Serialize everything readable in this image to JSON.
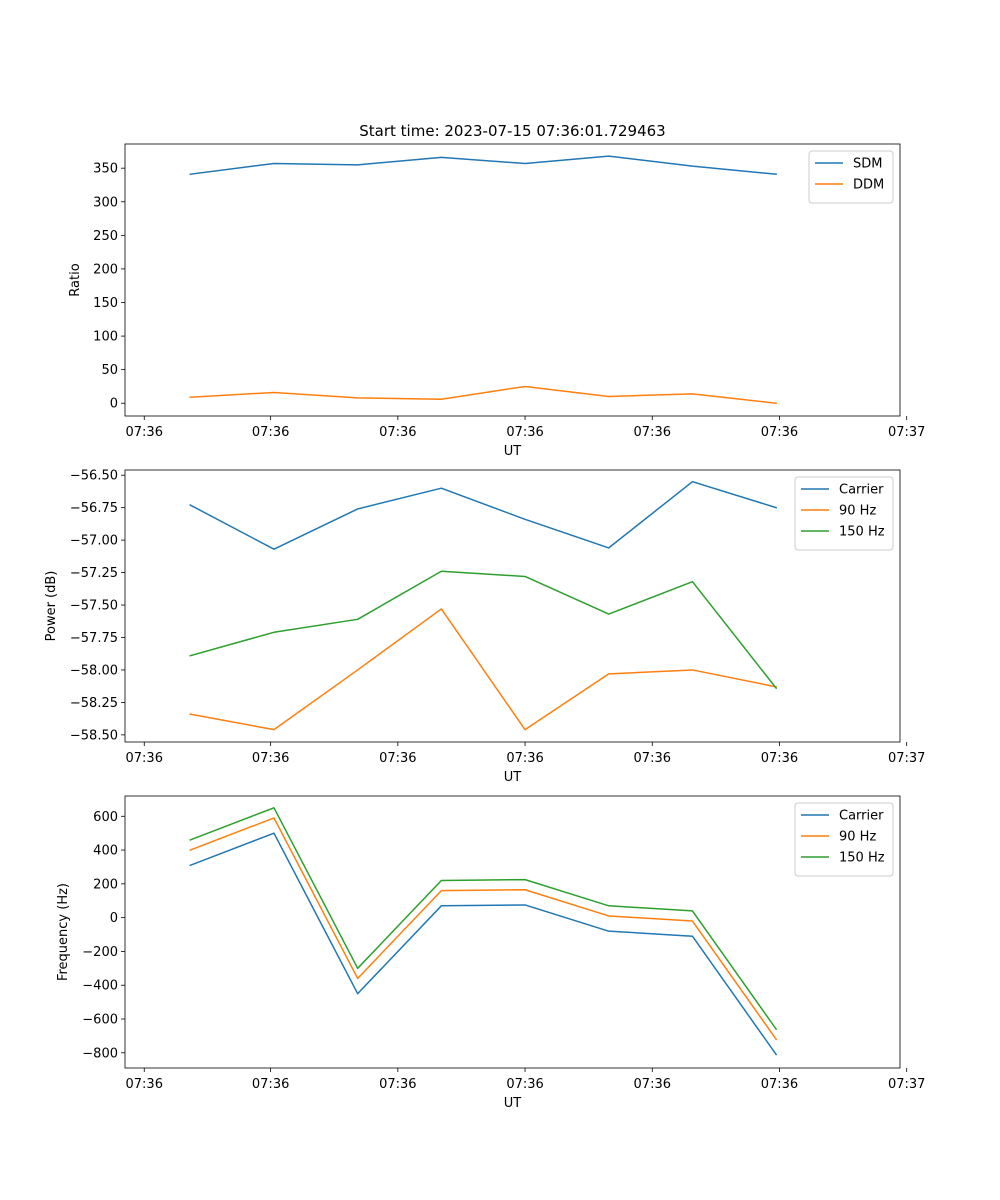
{
  "figure_title": "Start time: 2023-07-15 07:36:01.729463",
  "chart_data": [
    {
      "type": "line",
      "title": "Start time: 2023-07-15 07:36:01.729463",
      "xlabel": "UT",
      "ylabel": "Ratio",
      "x": [
        1,
        2,
        3,
        4,
        5,
        6,
        7,
        8
      ],
      "xlim": [
        0.22,
        9.48
      ],
      "x_ticks": [
        0.45,
        1.96,
        3.48,
        5.0,
        6.52,
        8.04,
        9.56
      ],
      "x_tick_labels": [
        "07:36",
        "07:36",
        "07:36",
        "07:36",
        "07:36",
        "07:36",
        "07:37"
      ],
      "ylim": [
        -19,
        386
      ],
      "y_ticks": [
        0,
        50,
        100,
        150,
        200,
        250,
        300,
        350
      ],
      "y_tick_labels": [
        "0",
        "50",
        "100",
        "150",
        "200",
        "250",
        "300",
        "350"
      ],
      "legend_position": "top-right",
      "series": [
        {
          "name": "SDM",
          "color": "#1f77b4",
          "values": [
            341,
            357,
            355,
            366,
            357,
            368,
            353,
            341
          ]
        },
        {
          "name": "DDM",
          "color": "#ff7f0e",
          "values": [
            9,
            16,
            8,
            6,
            25,
            10,
            14,
            0
          ]
        }
      ]
    },
    {
      "type": "line",
      "title": "",
      "xlabel": "UT",
      "ylabel": "Power (dB)",
      "x": [
        1,
        2,
        3,
        4,
        5,
        6,
        7,
        8
      ],
      "xlim": [
        0.22,
        9.48
      ],
      "x_ticks": [
        0.45,
        1.96,
        3.48,
        5.0,
        6.52,
        8.04,
        9.56
      ],
      "x_tick_labels": [
        "07:36",
        "07:36",
        "07:36",
        "07:36",
        "07:36",
        "07:36",
        "07:37"
      ],
      "ylim": [
        -58.555,
        -56.46
      ],
      "y_ticks": [
        -58.5,
        -58.25,
        -58.0,
        -57.75,
        -57.5,
        -57.25,
        -57.0,
        -56.75,
        -56.5
      ],
      "y_tick_labels": [
        "−58.50",
        "−58.25",
        "−58.00",
        "−57.75",
        "−57.50",
        "−57.25",
        "−57.00",
        "−56.75",
        "−56.50"
      ],
      "legend_position": "top-right",
      "series": [
        {
          "name": "Carrier",
          "color": "#1f77b4",
          "values": [
            -56.73,
            -57.07,
            -56.76,
            -56.6,
            -56.84,
            -57.06,
            -56.55,
            -56.75
          ]
        },
        {
          "name": "90 Hz",
          "color": "#ff7f0e",
          "values": [
            -58.34,
            -58.46,
            -58.0,
            -57.53,
            -58.46,
            -58.03,
            -58.0,
            -58.13
          ]
        },
        {
          "name": "150 Hz",
          "color": "#2ca02c",
          "values": [
            -57.89,
            -57.71,
            -57.61,
            -57.24,
            -57.28,
            -57.57,
            -57.32,
            -58.14
          ]
        }
      ]
    },
    {
      "type": "line",
      "title": "",
      "xlabel": "UT",
      "ylabel": "Frequency (Hz)",
      "x": [
        1,
        2,
        3,
        4,
        5,
        6,
        7,
        8
      ],
      "xlim": [
        0.22,
        9.48
      ],
      "x_ticks": [
        0.45,
        1.96,
        3.48,
        5.0,
        6.52,
        8.04,
        9.56
      ],
      "x_tick_labels": [
        "07:36",
        "07:36",
        "07:36",
        "07:36",
        "07:36",
        "07:36",
        "07:37"
      ],
      "ylim": [
        -890,
        720
      ],
      "y_ticks": [
        -800,
        -600,
        -400,
        -200,
        0,
        200,
        400,
        600
      ],
      "y_tick_labels": [
        "−800",
        "−600",
        "−400",
        "−200",
        "0",
        "200",
        "400",
        "600"
      ],
      "legend_position": "top-right",
      "series": [
        {
          "name": "Carrier",
          "color": "#1f77b4",
          "values": [
            310,
            500,
            -450,
            70,
            75,
            -80,
            -110,
            -810
          ]
        },
        {
          "name": "90 Hz",
          "color": "#ff7f0e",
          "values": [
            400,
            590,
            -360,
            160,
            165,
            10,
            -20,
            -720
          ]
        },
        {
          "name": "150 Hz",
          "color": "#2ca02c",
          "values": [
            460,
            650,
            -300,
            220,
            225,
            70,
            40,
            -660
          ]
        }
      ]
    }
  ]
}
